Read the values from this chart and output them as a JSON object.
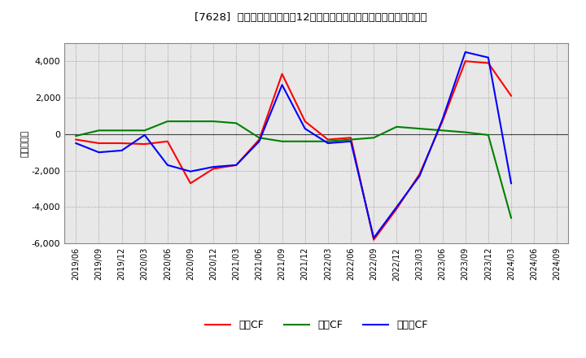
{
  "title": "[7628]  キャッシュフローの12か月移動合計の対前年同期増減額の推移",
  "ylabel": "（百万円）",
  "x_labels": [
    "2019/06",
    "2019/09",
    "2019/12",
    "2020/03",
    "2020/06",
    "2020/09",
    "2020/12",
    "2021/03",
    "2021/06",
    "2021/09",
    "2021/12",
    "2022/03",
    "2022/06",
    "2022/09",
    "2022/12",
    "2023/03",
    "2023/06",
    "2023/09",
    "2023/12",
    "2024/03",
    "2024/06",
    "2024/09"
  ],
  "eigyo_cf": [
    -300,
    -500,
    -500,
    -550,
    -400,
    -2700,
    -1900,
    -1700,
    -300,
    3300,
    700,
    -300,
    -200,
    -5800,
    -4100,
    -2200,
    700,
    4000,
    3900,
    2100,
    null,
    null
  ],
  "toshi_cf": [
    -100,
    200,
    200,
    200,
    700,
    700,
    700,
    600,
    -200,
    -400,
    -400,
    -400,
    -300,
    -200,
    400,
    300,
    200,
    100,
    -50,
    -4600,
    null,
    null
  ],
  "free_cf": [
    -500,
    -1000,
    -900,
    -50,
    -1700,
    -2050,
    -1800,
    -1700,
    -400,
    2700,
    300,
    -500,
    -400,
    -5700,
    -4000,
    -2300,
    800,
    4500,
    4200,
    -2700,
    null,
    null
  ],
  "ylim": [
    -6000,
    5000
  ],
  "yticks": [
    -6000,
    -4000,
    -2000,
    0,
    2000,
    4000
  ],
  "eigyo_color": "#ff0000",
  "toshi_color": "#008000",
  "free_color": "#0000ff",
  "bg_color": "#ffffff",
  "plot_bg_color": "#e8e8e8",
  "grid_color": "#888888",
  "legend_labels": [
    "営業CF",
    "投賃CF",
    "フリーCF"
  ]
}
